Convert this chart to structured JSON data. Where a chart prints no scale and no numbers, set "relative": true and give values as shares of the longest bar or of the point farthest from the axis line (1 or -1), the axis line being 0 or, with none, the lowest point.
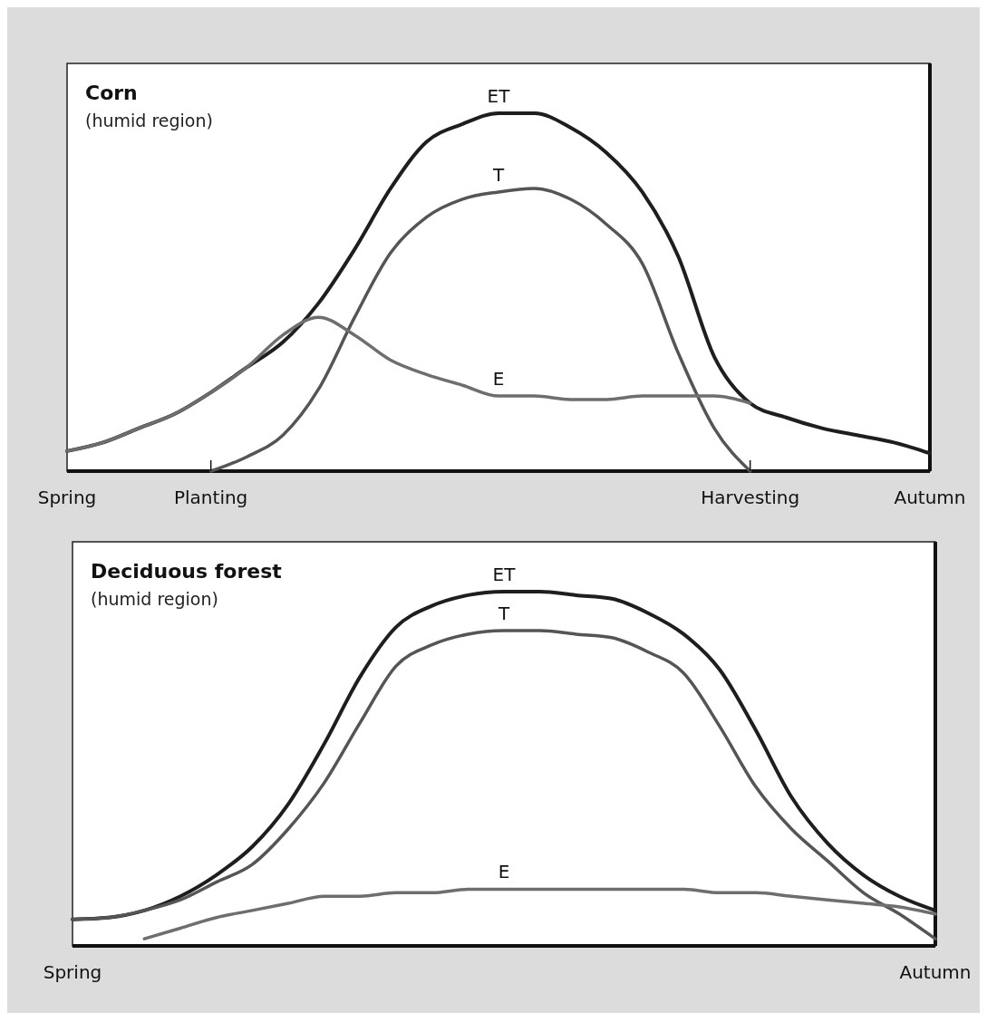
{
  "chart_data": [
    {
      "type": "line",
      "title": "Corn",
      "subtitle": "(humid region)",
      "relative": true,
      "categories": [
        "Spring",
        null,
        null,
        null,
        "Planting",
        null,
        null,
        null,
        null,
        null,
        null,
        null,
        null,
        null,
        null,
        null,
        null,
        null,
        null,
        "Harvesting",
        null,
        null,
        null,
        null,
        "Autumn"
      ],
      "series": [
        {
          "name": "ET",
          "color": "#1e1e1e",
          "values": [
            0.056,
            0.08,
            0.12,
            0.16,
            0.22,
            0.29,
            0.36,
            0.47,
            0.62,
            0.79,
            0.92,
            0.97,
            1.0,
            1.0,
            0.96,
            0.89,
            0.78,
            0.6,
            0.32,
            0.19,
            0.15,
            0.12,
            0.1,
            0.08,
            0.05
          ]
        },
        {
          "name": "T",
          "color": "#555555",
          "values": [
            null,
            null,
            null,
            null,
            0,
            0.04,
            0.1,
            0.23,
            0.43,
            0.61,
            0.71,
            0.76,
            0.78,
            0.79,
            0.76,
            0.69,
            0.58,
            0.33,
            0.12,
            0,
            null,
            null,
            null,
            null,
            null
          ]
        },
        {
          "name": "E",
          "color": "#6e6e6e",
          "values": [
            0.056,
            0.08,
            0.12,
            0.16,
            0.22,
            0.29,
            0.38,
            0.43,
            0.38,
            0.31,
            0.27,
            0.24,
            0.21,
            0.21,
            0.2,
            0.2,
            0.21,
            0.21,
            0.21,
            0.19,
            null,
            null,
            null,
            null,
            null
          ]
        }
      ]
    },
    {
      "type": "line",
      "title": "Deciduous forest",
      "subtitle": "(humid region)",
      "relative": true,
      "categories": [
        "Spring",
        null,
        null,
        null,
        null,
        null,
        null,
        null,
        null,
        null,
        null,
        null,
        null,
        null,
        null,
        null,
        null,
        null,
        null,
        null,
        null,
        null,
        null,
        null,
        "Autumn"
      ],
      "series": [
        {
          "name": "ET",
          "color": "#1e1e1e",
          "values": [
            0.075,
            0.08,
            0.1,
            0.14,
            0.2,
            0.28,
            0.4,
            0.57,
            0.76,
            0.9,
            0.96,
            0.99,
            1.0,
            1.0,
            0.99,
            0.98,
            0.94,
            0.88,
            0.78,
            0.61,
            0.42,
            0.29,
            0.2,
            0.14,
            0.1
          ]
        },
        {
          "name": "T",
          "color": "#555555",
          "values": [
            0.075,
            0.08,
            0.1,
            0.13,
            0.18,
            0.23,
            0.33,
            0.46,
            0.63,
            0.79,
            0.85,
            0.88,
            0.89,
            0.89,
            0.88,
            0.87,
            0.83,
            0.77,
            0.62,
            0.45,
            0.33,
            0.24,
            0.15,
            0.09,
            0.02
          ]
        },
        {
          "name": "E",
          "color": "#6e6e6e",
          "values": [
            null,
            null,
            0.02,
            0.05,
            0.08,
            0.1,
            0.12,
            0.14,
            0.14,
            0.15,
            0.15,
            0.16,
            0.16,
            0.16,
            0.16,
            0.16,
            0.16,
            0.16,
            0.15,
            0.15,
            0.14,
            0.13,
            0.12,
            0.11,
            0.09
          ]
        }
      ]
    }
  ]
}
